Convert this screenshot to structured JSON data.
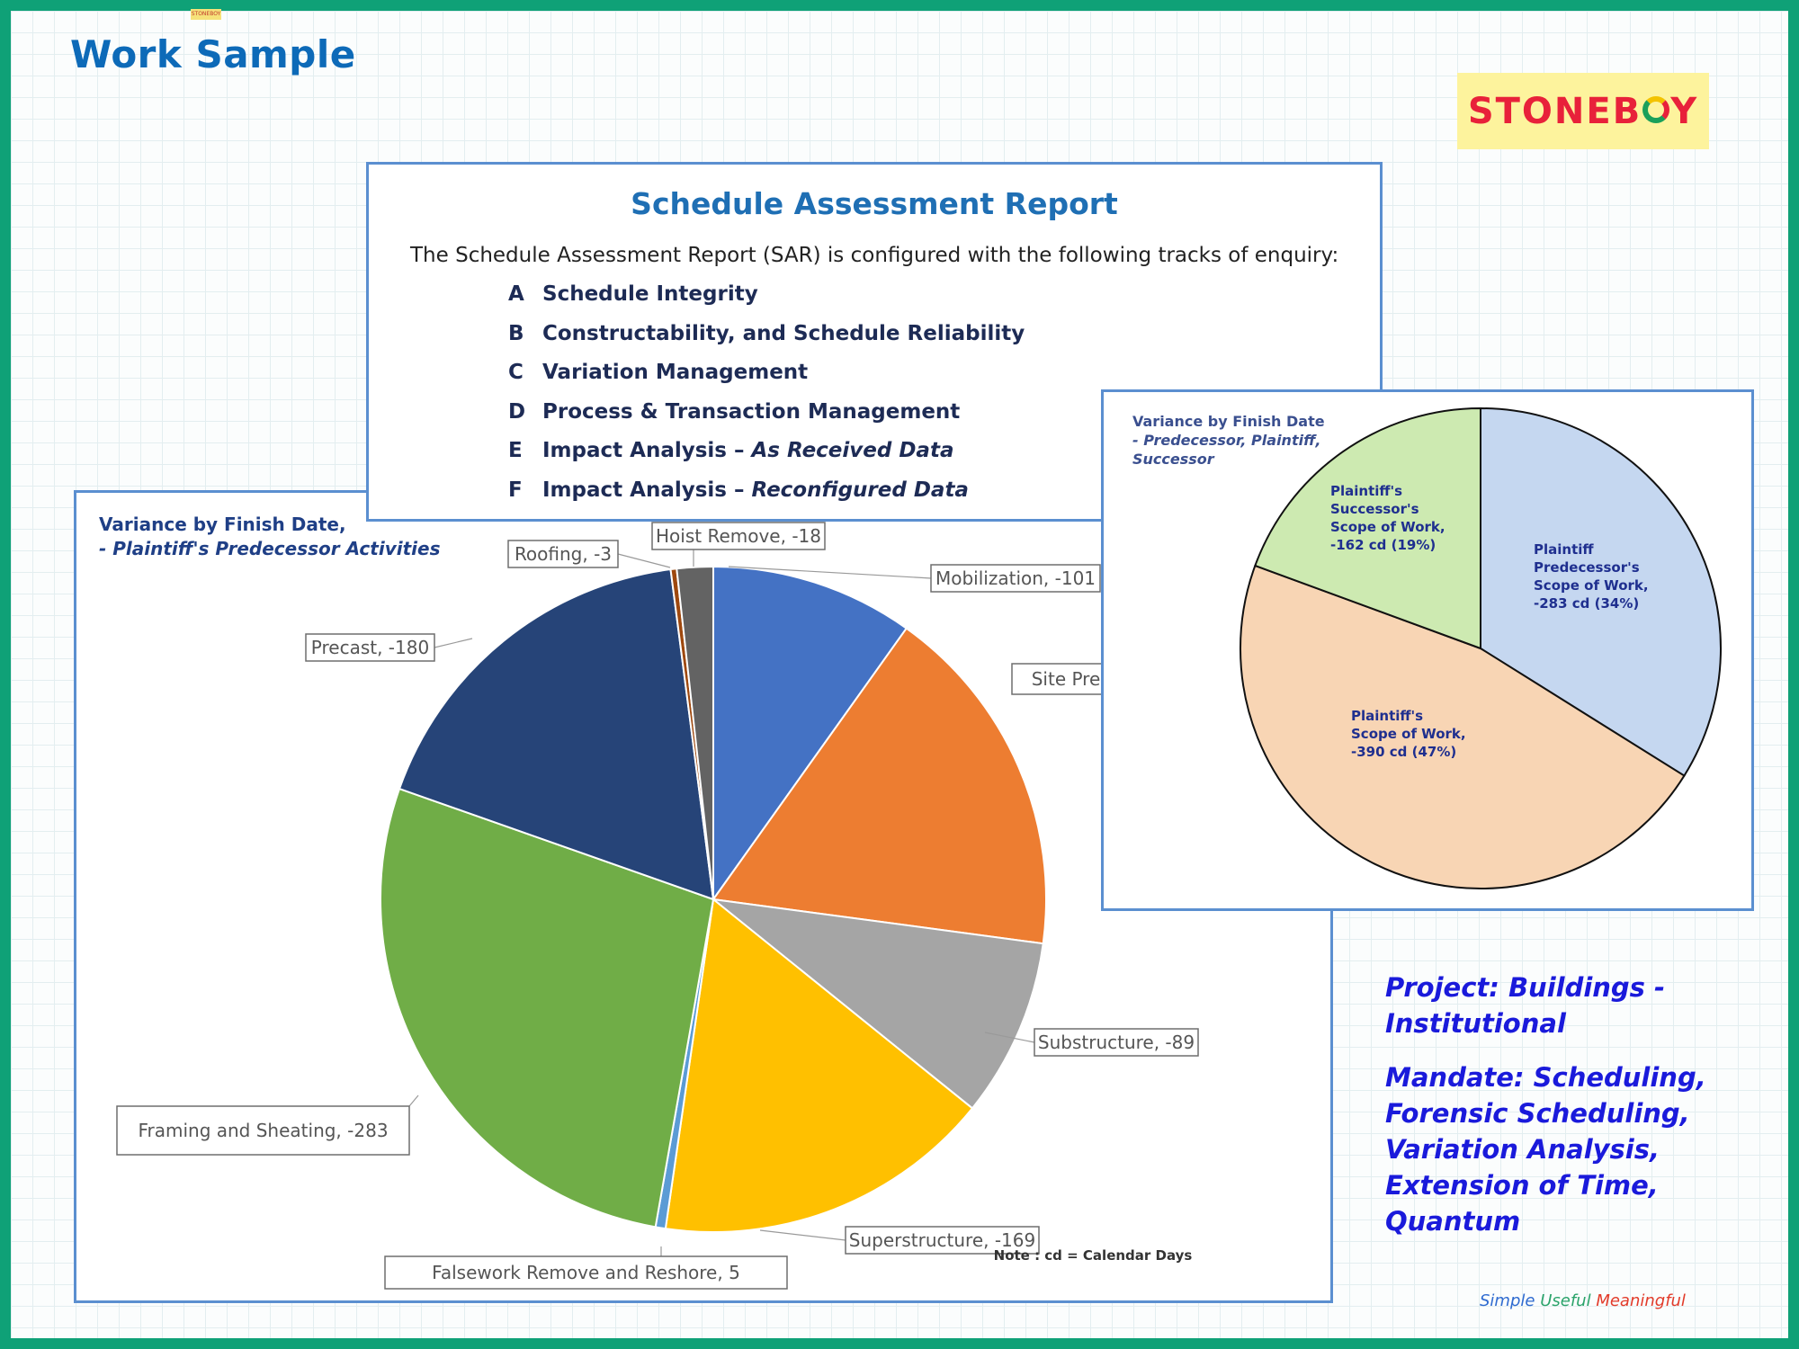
{
  "page": {
    "title": "Work Sample",
    "tiny_tag": "STONEBOY",
    "logo": {
      "before": "STONEB",
      "after": "Y"
    },
    "tagline": {
      "simple": "Simple",
      "useful": "Useful",
      "meaningful": "Meaningful"
    }
  },
  "report": {
    "title": "Schedule Assessment Report",
    "intro": "The Schedule Assessment Report (SAR) is configured with the following tracks of enquiry:",
    "tracks": [
      {
        "letter": "A",
        "text": "Schedule Integrity",
        "emph": ""
      },
      {
        "letter": "B",
        "text": "Constructability, and Schedule Reliability",
        "emph": ""
      },
      {
        "letter": "C",
        "text": "Variation Management",
        "emph": ""
      },
      {
        "letter": "D",
        "text": "Process & Transaction Management",
        "emph": ""
      },
      {
        "letter": "E",
        "text": "Impact Analysis – ",
        "emph": "As Received Data"
      },
      {
        "letter": "F",
        "text": "Impact Analysis – ",
        "emph": "Reconfigured Data"
      }
    ]
  },
  "left_chart": {
    "heading_line1": "Variance by Finish Date,",
    "heading_line2": "- Plaintiff's Predecessor Activities",
    "note": "Note : cd = Calendar Days"
  },
  "right_chart": {
    "heading_line1": "Variance by Finish Date",
    "heading_line2": "- Predecessor, Plaintiff,",
    "heading_line3": "Successor"
  },
  "project": {
    "line1": "Project: Buildings -",
    "line2": "Institutional",
    "mandate": [
      "Mandate: Scheduling,",
      "Forensic Scheduling,",
      "Variation Analysis,",
      "Extension of Time,",
      "Quantum"
    ]
  },
  "chart_data": [
    {
      "type": "pie",
      "title": "Variance by Finish Date, - Plaintiff's Predecessor Activities",
      "categories": [
        "Mobilization",
        "Site Pre",
        "Substructure",
        "Superstructure",
        "Falsework Remove and Reshore",
        "Framing and Sheating",
        "Precast",
        "Roofing",
        "Hoist Remove"
      ],
      "values": [
        -101,
        -177,
        -89,
        -169,
        5,
        -283,
        -180,
        -3,
        -18
      ],
      "labels": [
        "Mobilization, -101",
        "Site Pre",
        "Substructure, -89",
        "Superstructure, -169",
        "Falsework Remove and Reshore, 5",
        "Framing and Sheating, -283",
        "Precast, -180",
        "Roofing, -3",
        "Hoist Remove, -18"
      ],
      "colors": [
        "#4472c4",
        "#ed7d31",
        "#a5a5a5",
        "#ffc000",
        "#5b9bd5",
        "#70ad47",
        "#264478",
        "#9e480e",
        "#636363"
      ],
      "legend": "none"
    },
    {
      "type": "pie",
      "title": "Variance by Finish Date - Predecessor, Plaintiff, Successor",
      "categories": [
        "Plaintiff Predecessor's Scope of Work",
        "Plaintiff's Scope of Work",
        "Plaintiff's Successor's Scope of Work"
      ],
      "values": [
        -283,
        -390,
        -162
      ],
      "percent": [
        34,
        47,
        19
      ],
      "labels": [
        [
          "Plaintiff",
          "Predecessor's",
          "Scope of Work,",
          "-283 cd (34%)"
        ],
        [
          "Plaintiff's",
          "Scope of Work,",
          "-390 cd (47%)"
        ],
        [
          "Plaintiff's",
          "Successor's",
          "Scope of Work,",
          "-162 cd (19%)"
        ]
      ],
      "colors": [
        "#c5d7f0",
        "#f8d5b4",
        "#cdeab1"
      ],
      "legend": "none"
    }
  ]
}
